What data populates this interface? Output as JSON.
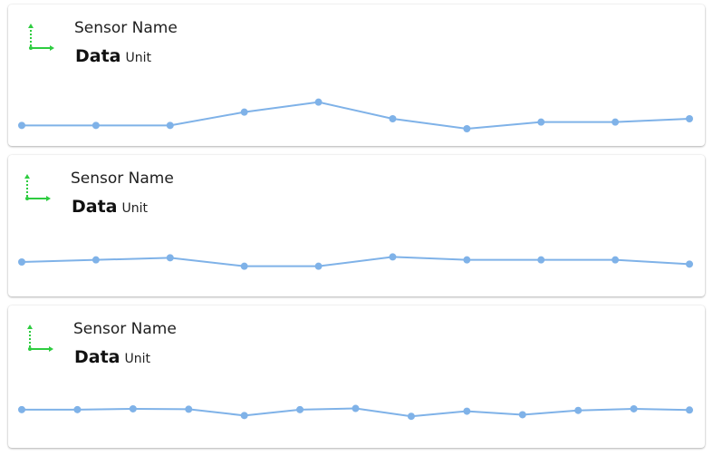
{
  "accent_color": "#2ecc40",
  "series_color": "#7fb2e8",
  "cards": [
    {
      "name": "Sensor Name",
      "value": "Data",
      "unit": "Unit",
      "icon": "axis-arrows-icon",
      "sparkline": [
        2.0,
        2.0,
        2.0,
        4.0,
        5.5,
        3.0,
        1.5,
        2.5,
        2.5,
        3.0
      ]
    },
    {
      "name": "Sensor Name",
      "value": "Data",
      "unit": "Unit",
      "icon": "axis-arrows-icon",
      "sparkline": [
        3.0,
        3.5,
        4.0,
        2.0,
        2.0,
        4.2,
        3.5,
        3.5,
        3.5,
        2.5
      ]
    },
    {
      "name": "Sensor Name",
      "value": "Data",
      "unit": "Unit",
      "icon": "axis-arrows-icon",
      "sparkline": [
        3.5,
        3.5,
        3.7,
        3.6,
        2.0,
        3.5,
        3.8,
        1.8,
        3.1,
        2.2,
        3.3,
        3.7,
        3.4
      ]
    }
  ]
}
